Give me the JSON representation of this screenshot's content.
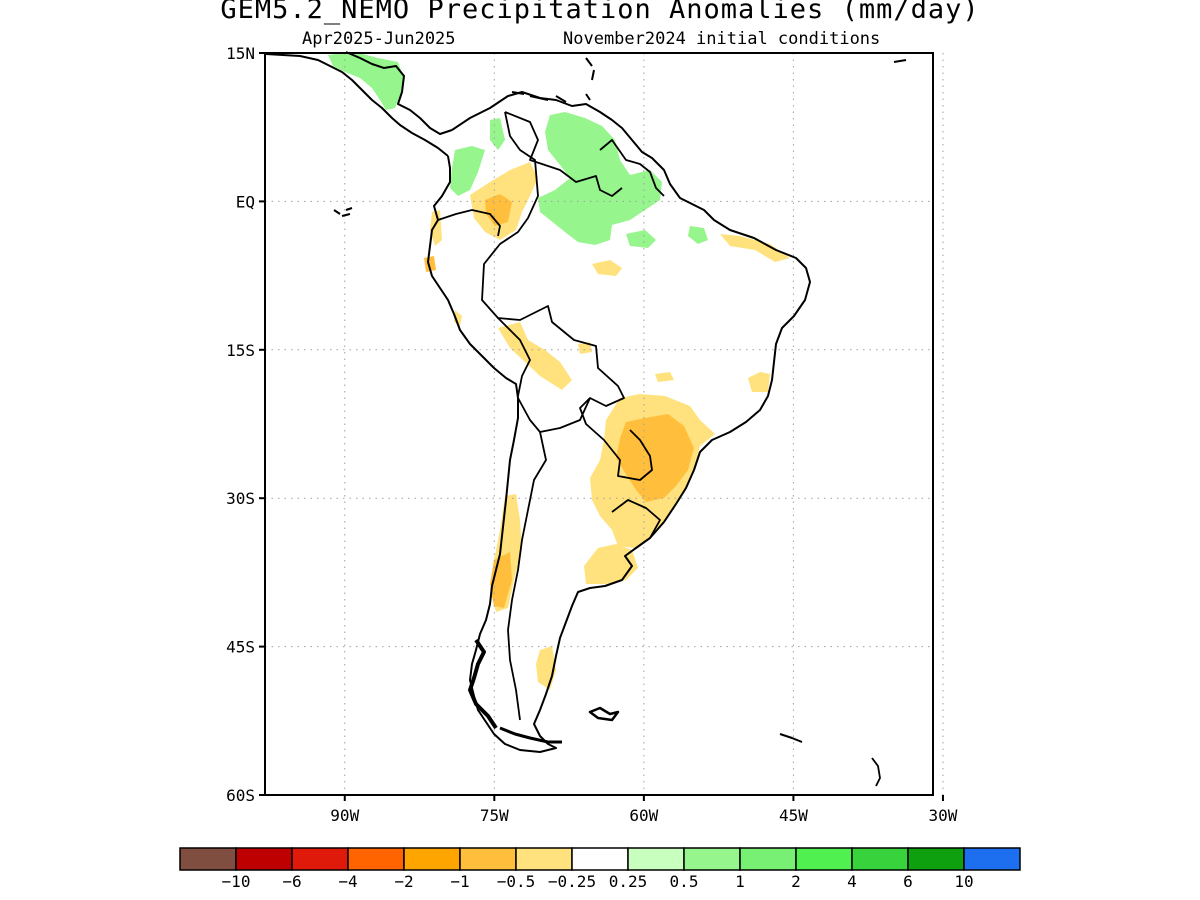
{
  "title": "GEM5.2_NEMO Precipitation Anomalies (mm/day)",
  "subtitle_left": "Apr2025-Jun2025",
  "subtitle_right": "November2024 initial conditions",
  "map": {
    "region": "South America",
    "lat_range": [
      -60,
      15
    ],
    "lon_range": [
      -98,
      -31
    ],
    "lat_ticks": [
      {
        "value": 15,
        "label": "15N"
      },
      {
        "value": 0,
        "label": "EQ"
      },
      {
        "value": -15,
        "label": "15S"
      },
      {
        "value": -30,
        "label": "30S"
      },
      {
        "value": -45,
        "label": "45S"
      },
      {
        "value": -60,
        "label": "60S"
      }
    ],
    "lon_ticks": [
      {
        "value": -90,
        "label": "90W"
      },
      {
        "value": -75,
        "label": "75W"
      },
      {
        "value": -60,
        "label": "60W"
      },
      {
        "value": -45,
        "label": "45W"
      },
      {
        "value": -30,
        "label": "30W"
      }
    ],
    "grid": "dotted"
  },
  "colorbar": {
    "colors": [
      "#7f4e40",
      "#bf0000",
      "#e01a0a",
      "#ff6400",
      "#ffa500",
      "#ffbf3d",
      "#ffe27d",
      "#ffffff",
      "#c8ffbe",
      "#96f58c",
      "#78f073",
      "#50f050",
      "#37d23c",
      "#0fa00f",
      "#1e6ef0"
    ],
    "labels": [
      "-10",
      "-6",
      "-4",
      "-2",
      "-1",
      "-0.5",
      "-0.25",
      "0.25",
      "0.5",
      "1",
      "2",
      "4",
      "6",
      "10"
    ]
  },
  "anomaly_regions": [
    {
      "name": "central-america-wet",
      "category": "0.5 to 1",
      "color": "#96f58c"
    },
    {
      "name": "venezuela-guyana-wet",
      "category": "0.5 to 1",
      "color": "#96f58c"
    },
    {
      "name": "colombia-pacific-wet",
      "category": "0.5 to 1",
      "color": "#96f58c"
    },
    {
      "name": "colombia-dry",
      "category": "-0.5 to -0.25",
      "color": "#ffe27d"
    },
    {
      "name": "amazon-dry",
      "category": "-0.5 to -0.25",
      "color": "#ffe27d"
    },
    {
      "name": "bolivia-dry",
      "category": "-0.5 to -0.25",
      "color": "#ffe27d"
    },
    {
      "name": "south-brazil-paraguay-dry",
      "category": "-0.5 to -0.25",
      "color": "#ffe27d"
    },
    {
      "name": "south-brazil-core-dry",
      "category": "-1 to -0.5",
      "color": "#ffbf3d"
    },
    {
      "name": "chile-dry",
      "category": "-0.5 to -0.25",
      "color": "#ffe27d"
    },
    {
      "name": "chile-core-dry",
      "category": "-1 to -0.5",
      "color": "#ffbf3d"
    },
    {
      "name": "argentina-dry",
      "category": "-0.5 to -0.25",
      "color": "#ffe27d"
    },
    {
      "name": "northeast-brazil-dry",
      "category": "-0.5 to -0.25",
      "color": "#ffe27d"
    }
  ]
}
